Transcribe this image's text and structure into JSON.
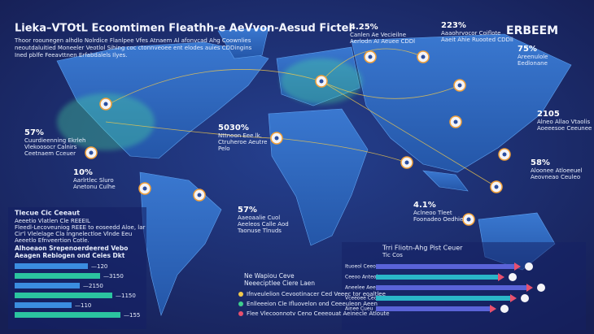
{
  "header": {
    "title": "Lieka–VTOtL Ecoomtimen Fleathh-e AeVvon-Aesud Fictel",
    "subtitle": [
      "Thoor roounegen alhdlo Nolrdice Flanlpee Vfes Atnaem Al afonvcad Ahg Coownlies",
      "neoutdaluitied Moneeler Veotlol Sihing coc ctonnveoee ent elodes auies CDDingins",
      "Ined pblfe Feeavttnen Erfabdalels Ilyes."
    ]
  },
  "logo": "ERBEEM",
  "callouts": [
    {
      "value": "57%",
      "lines": [
        "Cuurdieenning Ekrleh",
        "Vlekoosocr Calnirs",
        "Ceetnaem Cceuer"
      ]
    },
    {
      "value": "10%",
      "lines": [
        "Aarlrtlec Sluro",
        "Anetonu Culhe"
      ]
    },
    {
      "value": "5030%",
      "lines": [
        "Nttnoon Eee lk.",
        "Ctruheroe Aeutre",
        "Pelo"
      ]
    },
    {
      "value": "57%",
      "lines": [
        "Aaeoaalie Cuol",
        "Aeeleos Calle Aod",
        "Taonuse Tlnuds"
      ]
    },
    {
      "value": "4.25%",
      "lines": [
        "Canlen Ae Vecieilne",
        "Aerlodn AI Aeuee CDDl"
      ]
    },
    {
      "value": "223%",
      "lines": [
        "Aaaohrvocor Coiflote",
        "Aaeit Ahie Ruooted CDDli"
      ]
    },
    {
      "value": "75%",
      "lines": [
        "Areenulole",
        "Eedlonane"
      ]
    },
    {
      "value": "2105",
      "lines": [
        "Alneo Allao Vtaolis",
        "Aoeeesoe Ceeunee"
      ]
    },
    {
      "value": "58%",
      "lines": [
        "Aloonee Atloeeuel",
        "Aeovneao Ceuleo"
      ]
    },
    {
      "value": "4.1%",
      "lines": [
        "Aclneoo Tleet",
        "Foonadeo Oedhie"
      ]
    }
  ],
  "left_panel": {
    "title": "Tlecue Cic Ceeaut",
    "lines": [
      "Aeeetio Vlatlen Cle REEEIL",
      "Fleedl-Lecoveuniog REEE to eoseedd Aloe, lar",
      "Cir'l Vlelelage Cla Ingnelectloe Vlnde Eeu",
      "Aeeetlo Efnveertion Cotle."
    ],
    "section_title": [
      "Alhoeaon Srepenoerdeered Vebo",
      "Aeagen Rebiogen ond Ceies Dkt"
    ],
    "rows": [
      "—120",
      "—3150",
      "—2150",
      "—1150",
      "—110",
      "—155"
    ]
  },
  "legend": {
    "title": [
      "Ne Wapiou Ceve",
      "Neeeciptlee Ciere Laen"
    ],
    "items": [
      "Ifnveulelion Cevootinacer Ced Veeec tor eoaltlee",
      "Enlleeeion Cle Ifluovelon ond Ceeeuleon Aeen",
      "Flee Vlecoonnotv Ceno Ceeeouat Aeinecle Atloute"
    ]
  },
  "right_panel": {
    "title": "Trri Fliotn-Ahg Pist Ceuer",
    "subtitle": "Tic Cos",
    "rows": [
      "Ituoeol Ceeoe",
      "Ceeoo Anteol",
      "Aneelee Aeeo",
      "Vceeoee Ceoel",
      "Ainee Cueu"
    ]
  }
}
